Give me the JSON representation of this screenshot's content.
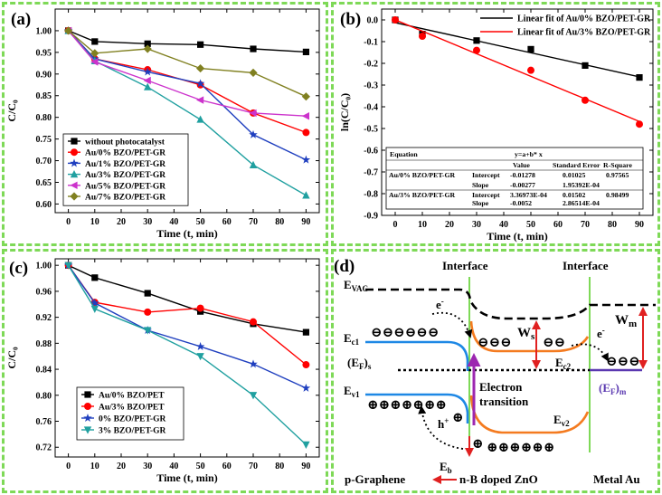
{
  "chart_data": [
    {
      "type": "line",
      "panel_label": "(a)",
      "xlabel": "Time (t, min)",
      "ylabel": "C/C₀",
      "xlim": [
        -5,
        95
      ],
      "ylim": [
        0.58,
        1.05
      ],
      "xticks": [
        0,
        10,
        20,
        30,
        40,
        50,
        60,
        70,
        80,
        90
      ],
      "yticks": [
        0.6,
        0.65,
        0.7,
        0.75,
        0.8,
        0.85,
        0.9,
        0.95,
        1.0
      ],
      "x": [
        0,
        10,
        30,
        50,
        70,
        90
      ],
      "legend_position": "bottom-left",
      "series": [
        {
          "name": "without photocatalyst",
          "color": "#000000",
          "marker": "square",
          "values": [
            1.0,
            0.975,
            0.97,
            0.968,
            0.958,
            0.951
          ]
        },
        {
          "name": "Au/0% BZO/PET-GR",
          "color": "#ff0000",
          "marker": "circle",
          "values": [
            1.0,
            0.935,
            0.91,
            0.875,
            0.81,
            0.765
          ]
        },
        {
          "name": "Au/1% BZO/PET-GR",
          "color": "#1f3fbf",
          "marker": "star",
          "values": [
            1.0,
            0.935,
            0.905,
            0.878,
            0.76,
            0.702
          ]
        },
        {
          "name": "Au/3% BZO/PET-GR",
          "color": "#20a0a0",
          "marker": "triangle-up",
          "values": [
            1.0,
            0.93,
            0.87,
            0.795,
            0.69,
            0.62
          ]
        },
        {
          "name": "Au/5% BZO/PET-GR",
          "color": "#cc33cc",
          "marker": "triangle-left",
          "values": [
            1.0,
            0.928,
            0.885,
            0.84,
            0.81,
            0.803
          ]
        },
        {
          "name": "Au/7% BZO/PET-GR",
          "color": "#808020",
          "marker": "diamond",
          "values": [
            1.0,
            0.948,
            0.958,
            0.913,
            0.903,
            0.848
          ]
        }
      ]
    },
    {
      "type": "scatter",
      "panel_label": "(b)",
      "xlabel": "Time (t, min)",
      "ylabel": "ln(C/C₀)",
      "xlim": [
        -5,
        95
      ],
      "ylim": [
        -0.9,
        0.05
      ],
      "xticks": [
        0,
        10,
        20,
        30,
        40,
        50,
        60,
        70,
        80,
        90
      ],
      "yticks": [
        0.0,
        -0.1,
        -0.2,
        -0.3,
        -0.4,
        -0.5,
        -0.6,
        -0.7,
        -0.8,
        -0.9
      ],
      "x": [
        0,
        10,
        30,
        50,
        70,
        90
      ],
      "legend_position": "top-right",
      "series": [
        {
          "name": "Linear fit of Au/0% BZO/PET-GR",
          "color": "#000000",
          "marker": "square",
          "values": [
            0.0,
            -0.065,
            -0.095,
            -0.135,
            -0.21,
            -0.265
          ],
          "fit": {
            "intercept": -0.01278,
            "slope": -0.00277
          }
        },
        {
          "name": "Linear fit of Au/3% BZO/PET-GR",
          "color": "#ff0000",
          "marker": "circle",
          "values": [
            0.0,
            -0.075,
            -0.14,
            -0.232,
            -0.37,
            -0.48
          ],
          "fit": {
            "intercept": 0.000337,
            "slope": -0.0052
          }
        }
      ],
      "table": {
        "equation_label": "Equation",
        "equation": "y=a+b* x",
        "columns": [
          "Value",
          "Standard Error",
          "R-Square"
        ],
        "rows": [
          {
            "sample": "Au/0% BZO/PET-GR",
            "param": "Intercept",
            "value": "-0.01278",
            "stderr": "0.01025",
            "r2": "0.97565"
          },
          {
            "sample": "",
            "param": "Slope",
            "value": "-0.00277",
            "stderr": "1.95392E-04",
            "r2": ""
          },
          {
            "sample": "Au/3% BZO/PET-GR",
            "param": "Intercept",
            "value": "3.36973E-04",
            "stderr": "0.01502",
            "r2": "0.98499"
          },
          {
            "sample": "",
            "param": "Slope",
            "value": "-0.0052",
            "stderr": "2.86514E-04",
            "r2": ""
          }
        ]
      }
    },
    {
      "type": "line",
      "panel_label": "(c)",
      "xlabel": "Time (t, min)",
      "ylabel": "C/C₀",
      "xlim": [
        -5,
        95
      ],
      "ylim": [
        0.705,
        1.01
      ],
      "xticks": [
        0,
        10,
        20,
        30,
        40,
        50,
        60,
        70,
        80,
        90
      ],
      "yticks": [
        0.72,
        0.76,
        0.8,
        0.84,
        0.88,
        0.92,
        0.96,
        1.0
      ],
      "x": [
        0,
        10,
        30,
        50,
        70,
        90
      ],
      "legend_position": "bottom-left",
      "series": [
        {
          "name": "Au/0% BZO/PET",
          "color": "#000000",
          "marker": "square",
          "values": [
            1.0,
            0.981,
            0.957,
            0.929,
            0.91,
            0.897
          ]
        },
        {
          "name": "Au/3% BZO/PET",
          "color": "#ff0000",
          "marker": "circle",
          "values": [
            1.0,
            0.943,
            0.928,
            0.934,
            0.913,
            0.847
          ]
        },
        {
          "name": "0% BZO/PET-GR",
          "color": "#1f3fbf",
          "marker": "star",
          "values": [
            1.0,
            0.942,
            0.9,
            0.875,
            0.848,
            0.811
          ]
        },
        {
          "name": "3% BZO/PET-GR",
          "color": "#20a0a0",
          "marker": "triangle-down",
          "values": [
            1.0,
            0.933,
            0.9,
            0.86,
            0.8,
            0.724
          ]
        }
      ]
    }
  ],
  "diagram": {
    "panel_label": "(d)",
    "interface_left": "Interface",
    "interface_right": "Interface",
    "evac": "E",
    "evac_sub": "VAC",
    "electron": "e",
    "electron_sup": "-",
    "ec1": "E",
    "ec1_sub": "c1",
    "ev1": "E",
    "ev1_sub": "v1",
    "ef_s": "(E",
    "ef_s_sub": "F",
    "ef_s_end": ")",
    "ef_s_sub2": "s",
    "ec2": "E",
    "ec2_sub": "c2",
    "ev2": "E",
    "ev2_sub": "v2",
    "ws": "W",
    "ws_sub": "s",
    "wm": "W",
    "wm_sub": "m",
    "ef_m": "(E",
    "ef_m_sub": "F",
    "ef_m_end": ")",
    "ef_m_sub2": "m",
    "transition_1": "Electron",
    "transition_2": "transition",
    "hole": "h",
    "hole_sup": "+",
    "eb": "E",
    "eb_sub": "b",
    "graphene": "p-Graphene",
    "zno": "n-B doped ZnO",
    "metal": "Metal Au",
    "minus_symbol": "⊖",
    "plus_symbol": "⊕",
    "colors": {
      "green": "#7ed957",
      "blue": "#1e88e5",
      "orange": "#f47b20",
      "red": "#e02020",
      "purple": "#9c27b0",
      "fermi_metal": "#5a38b0"
    }
  }
}
